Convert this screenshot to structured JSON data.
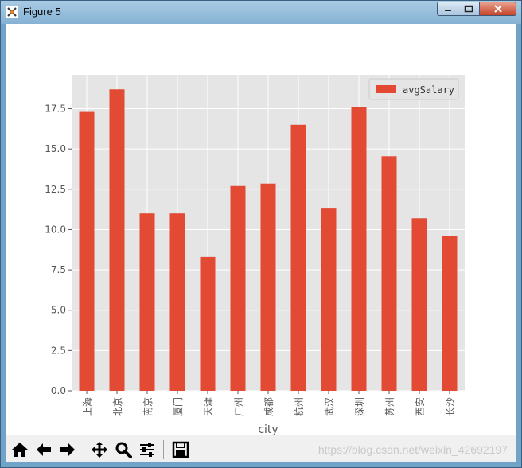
{
  "window": {
    "title": "Figure 5",
    "colors": {
      "titlebar": "#9cc2e0",
      "close": "#c7432a"
    }
  },
  "toolbar": {
    "buttons": [
      "home-icon",
      "back-arrow-icon",
      "forward-arrow-icon",
      "pan-icon",
      "zoom-icon",
      "configure-subplots-icon",
      "save-icon"
    ],
    "watermark": "https://blog.csdn.net/weixin_42692197"
  },
  "chart_data": {
    "type": "bar",
    "categories": [
      "上海",
      "北京",
      "南京",
      "厦门",
      "天津",
      "广州",
      "成都",
      "杭州",
      "武汉",
      "深圳",
      "苏州",
      "西安",
      "长沙"
    ],
    "series": [
      {
        "name": "avgSalary",
        "values": [
          17.3,
          18.7,
          11.0,
          11.0,
          8.3,
          12.7,
          12.85,
          16.5,
          11.35,
          17.6,
          14.55,
          10.7,
          9.6
        ]
      }
    ],
    "xlabel": "city",
    "ylabel": "",
    "ylim": [
      0,
      19.6
    ],
    "yticks": [
      "0.0",
      "2.5",
      "5.0",
      "7.5",
      "10.0",
      "12.5",
      "15.0",
      "17.5"
    ],
    "ytick_values": [
      0,
      2.5,
      5,
      7.5,
      10,
      12.5,
      15,
      17.5
    ],
    "grid": true,
    "legend_position": "top-right",
    "colors": {
      "bar": "#E24A33",
      "background": "#E5E5E5",
      "grid": "#ffffff"
    }
  }
}
